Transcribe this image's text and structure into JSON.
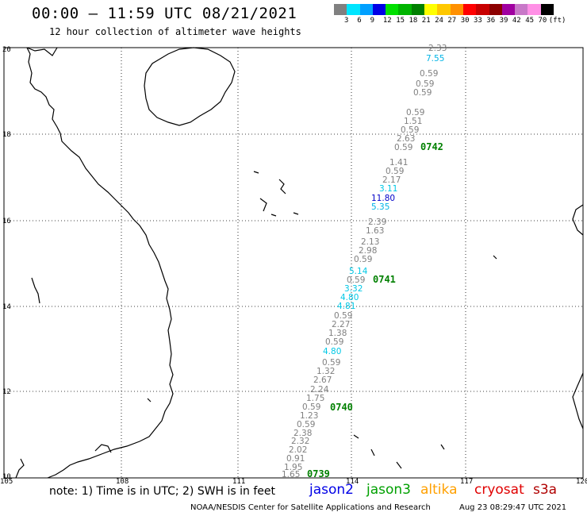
{
  "header": {
    "title": "00:00 – 11:59 UTC 08/21/2021",
    "subtitle": "12 hour collection of altimeter wave heights"
  },
  "colorbar": {
    "colors": [
      "#808080",
      "#00e5ff",
      "#00a0ff",
      "#0000e6",
      "#00e000",
      "#00b400",
      "#008000",
      "#ffff00",
      "#ffc800",
      "#ff9000",
      "#ff0000",
      "#c80000",
      "#8c0000",
      "#a000a0",
      "#c878c8",
      "#ff90e6",
      "#000000"
    ],
    "labels": [
      "3",
      "6",
      "9",
      "12",
      "15",
      "18",
      "21",
      "24",
      "27",
      "30",
      "33",
      "36",
      "39",
      "42",
      "45",
      "70",
      "(ft)"
    ]
  },
  "axes": {
    "lat_labels": [
      "20",
      "18",
      "16",
      "14",
      "12",
      "10"
    ],
    "lon_labels": [
      "105",
      "108",
      "111",
      "114",
      "117",
      "120"
    ]
  },
  "swh_points": [
    {
      "v": "2.33",
      "c": "#808080"
    },
    {
      "v": "7.55",
      "c": "#00b4e6"
    },
    {
      "v": "0.59",
      "c": "#808080"
    },
    {
      "v": "0.59",
      "c": "#808080"
    },
    {
      "v": "0.59",
      "c": "#808080"
    },
    {
      "v": "0.59",
      "c": "#808080"
    },
    {
      "v": "1.51",
      "c": "#808080"
    },
    {
      "v": "0.59",
      "c": "#808080"
    },
    {
      "v": "2.63",
      "c": "#808080"
    },
    {
      "v": "0.59",
      "c": "#808080"
    },
    {
      "v": "1.41",
      "c": "#808080"
    },
    {
      "v": "0.59",
      "c": "#808080"
    },
    {
      "v": "2.17",
      "c": "#808080"
    },
    {
      "v": "3.11",
      "c": "#00c8e6"
    },
    {
      "v": "11.80",
      "c": "#0000c8"
    },
    {
      "v": "5.35",
      "c": "#00b4e6"
    },
    {
      "v": "2.39",
      "c": "#808080"
    },
    {
      "v": "1.63",
      "c": "#808080"
    },
    {
      "v": "2.13",
      "c": "#808080"
    },
    {
      "v": "2.98",
      "c": "#808080"
    },
    {
      "v": "0.59",
      "c": "#808080"
    },
    {
      "v": "5.14",
      "c": "#00c8e6"
    },
    {
      "v": "0.59",
      "c": "#808080"
    },
    {
      "v": "3.32",
      "c": "#00c8e6"
    },
    {
      "v": "4.80",
      "c": "#00c8e6"
    },
    {
      "v": "4.81",
      "c": "#00c8e6"
    },
    {
      "v": "0.59",
      "c": "#808080"
    },
    {
      "v": "2.27",
      "c": "#808080"
    },
    {
      "v": "1.38",
      "c": "#808080"
    },
    {
      "v": "0.59",
      "c": "#808080"
    },
    {
      "v": "4.80",
      "c": "#00c8e6"
    },
    {
      "v": "0.59",
      "c": "#808080"
    },
    {
      "v": "1.32",
      "c": "#808080"
    },
    {
      "v": "2.67",
      "c": "#808080"
    },
    {
      "v": "2.24",
      "c": "#808080"
    },
    {
      "v": "1.75",
      "c": "#808080"
    },
    {
      "v": "0.59",
      "c": "#808080"
    },
    {
      "v": "1.23",
      "c": "#808080"
    },
    {
      "v": "0.59",
      "c": "#808080"
    },
    {
      "v": "2.38",
      "c": "#808080"
    },
    {
      "v": "2.32",
      "c": "#808080"
    },
    {
      "v": "2.02",
      "c": "#808080"
    },
    {
      "v": "0.91",
      "c": "#808080"
    },
    {
      "v": "1.95",
      "c": "#808080"
    },
    {
      "v": "1.65",
      "c": "#808080"
    }
  ],
  "pass_labels": [
    "0742",
    "0741",
    "0740",
    "0739"
  ],
  "footer": {
    "note": "note: 1) Time is in UTC; 2) SWH is in feet",
    "satellites": [
      {
        "name": "jason2",
        "color": "#0000e6"
      },
      {
        "name": "jason3",
        "color": "#00a000"
      },
      {
        "name": "altika",
        "color": "#ffa000"
      },
      {
        "name": "cryosat",
        "color": "#e00000"
      },
      {
        "name": "s3a",
        "color": "#b00000"
      }
    ],
    "credit": "NOAA/NESDIS Center for Satellite Applications and Research",
    "timestamp": "Aug 23 08:29:47 UTC 2021"
  }
}
